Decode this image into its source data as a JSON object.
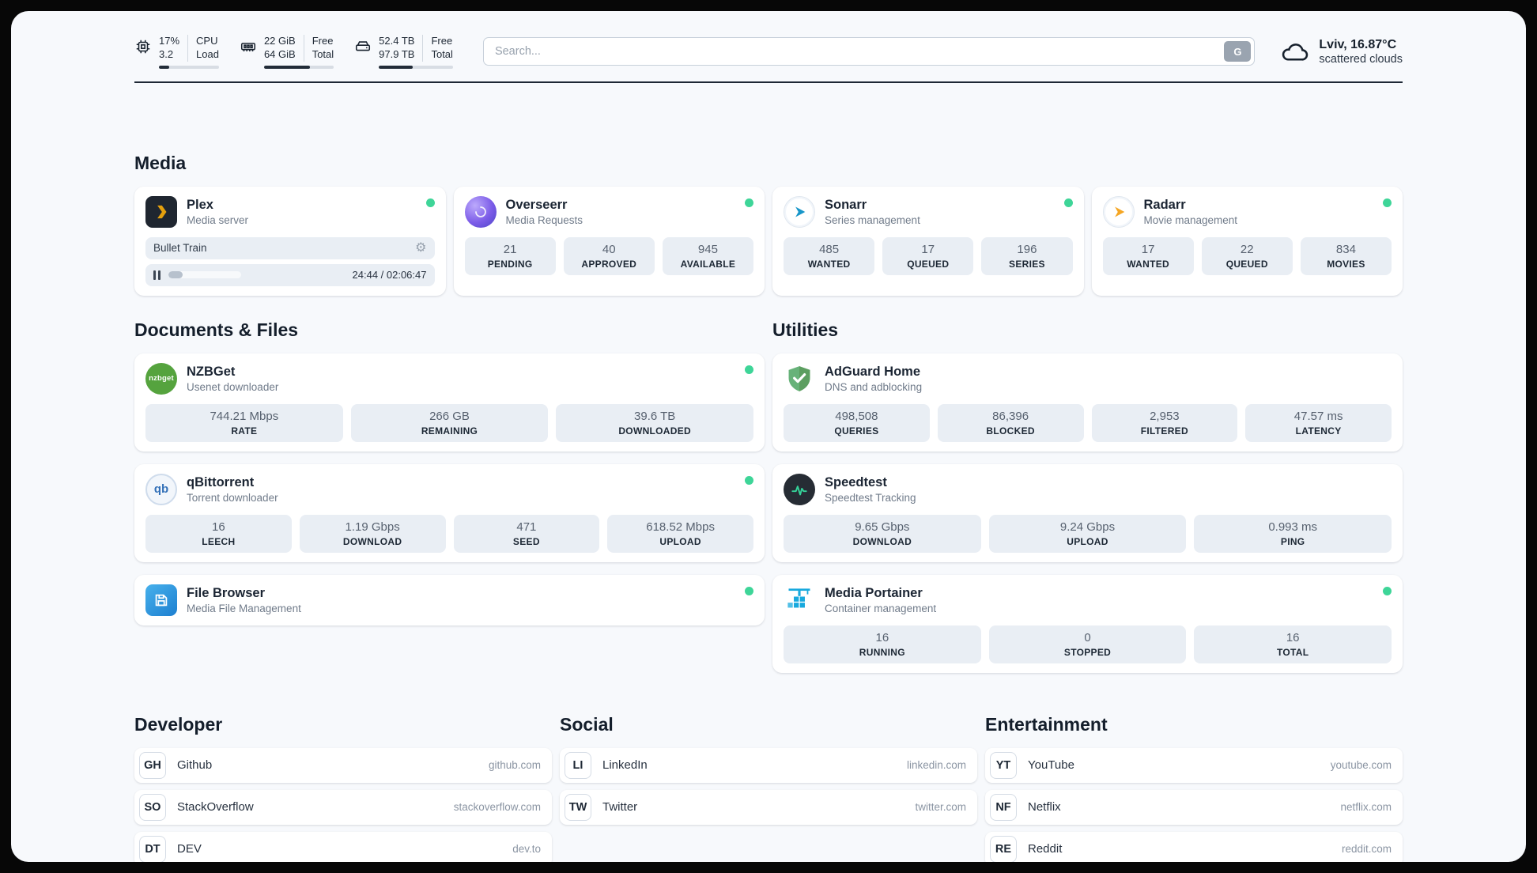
{
  "header": {
    "cpu": {
      "line1": "17%",
      "line2": "3.2",
      "label1": "CPU",
      "label2": "Load",
      "used_percent": 17
    },
    "ram": {
      "line1": "22 GiB",
      "line2": "64 GiB",
      "label1": "Free",
      "label2": "Total",
      "used_percent": 66
    },
    "disk": {
      "line1": "52.4 TB",
      "line2": "97.9 TB",
      "label1": "Free",
      "label2": "Total",
      "used_percent": 46
    },
    "search": {
      "placeholder": "Search...",
      "button_label": "G"
    },
    "weather": {
      "location": "Lviv, 16.87°C",
      "condition": "scattered clouds"
    }
  },
  "sections": {
    "media": {
      "title": "Media",
      "apps": [
        {
          "name": "Plex",
          "subtitle": "Media server",
          "online": true,
          "player": {
            "title": "Bullet Train",
            "time": "24:44 / 02:06:47",
            "progress_percent": 20,
            "state": "paused"
          }
        },
        {
          "name": "Overseerr",
          "subtitle": "Media Requests",
          "online": true,
          "stats": [
            {
              "value": "21",
              "label": "PENDING"
            },
            {
              "value": "40",
              "label": "APPROVED"
            },
            {
              "value": "945",
              "label": "AVAILABLE"
            }
          ]
        },
        {
          "name": "Sonarr",
          "subtitle": "Series management",
          "online": true,
          "stats": [
            {
              "value": "485",
              "label": "WANTED"
            },
            {
              "value": "17",
              "label": "QUEUED"
            },
            {
              "value": "196",
              "label": "SERIES"
            }
          ]
        },
        {
          "name": "Radarr",
          "subtitle": "Movie management",
          "online": true,
          "stats": [
            {
              "value": "17",
              "label": "WANTED"
            },
            {
              "value": "22",
              "label": "QUEUED"
            },
            {
              "value": "834",
              "label": "MOVIES"
            }
          ]
        }
      ]
    },
    "documents": {
      "title": "Documents & Files",
      "apps": [
        {
          "name": "NZBGet",
          "subtitle": "Usenet downloader",
          "online": true,
          "stats": [
            {
              "value": "744.21 Mbps",
              "label": "RATE"
            },
            {
              "value": "266 GB",
              "label": "REMAINING"
            },
            {
              "value": "39.6 TB",
              "label": "DOWNLOADED"
            }
          ]
        },
        {
          "name": "qBittorrent",
          "subtitle": "Torrent downloader",
          "online": true,
          "stats": [
            {
              "value": "16",
              "label": "LEECH"
            },
            {
              "value": "1.19 Gbps",
              "label": "DOWNLOAD"
            },
            {
              "value": "471",
              "label": "SEED"
            },
            {
              "value": "618.52 Mbps",
              "label": "UPLOAD"
            }
          ]
        },
        {
          "name": "File Browser",
          "subtitle": "Media File Management",
          "online": true,
          "stats": []
        }
      ]
    },
    "utilities": {
      "title": "Utilities",
      "apps": [
        {
          "name": "AdGuard Home",
          "subtitle": "DNS and adblocking",
          "stats": [
            {
              "value": "498,508",
              "label": "QUERIES"
            },
            {
              "value": "86,396",
              "label": "BLOCKED"
            },
            {
              "value": "2,953",
              "label": "FILTERED"
            },
            {
              "value": "47.57 ms",
              "label": "LATENCY"
            }
          ]
        },
        {
          "name": "Speedtest",
          "subtitle": "Speedtest Tracking",
          "stats": [
            {
              "value": "9.65 Gbps",
              "label": "DOWNLOAD"
            },
            {
              "value": "9.24 Gbps",
              "label": "UPLOAD"
            },
            {
              "value": "0.993 ms",
              "label": "PING"
            }
          ]
        },
        {
          "name": "Media Portainer",
          "subtitle": "Container management",
          "online": true,
          "stats": [
            {
              "value": "16",
              "label": "RUNNING"
            },
            {
              "value": "0",
              "label": "STOPPED"
            },
            {
              "value": "16",
              "label": "TOTAL"
            }
          ]
        }
      ]
    },
    "bookmarks": [
      {
        "title": "Developer",
        "items": [
          {
            "badge": "GH",
            "name": "Github",
            "url": "github.com"
          },
          {
            "badge": "SO",
            "name": "StackOverflow",
            "url": "stackoverflow.com"
          },
          {
            "badge": "DT",
            "name": "DEV",
            "url": "dev.to"
          }
        ]
      },
      {
        "title": "Social",
        "items": [
          {
            "badge": "LI",
            "name": "LinkedIn",
            "url": "linkedin.com"
          },
          {
            "badge": "TW",
            "name": "Twitter",
            "url": "twitter.com"
          }
        ]
      },
      {
        "title": "Entertainment",
        "items": [
          {
            "badge": "YT",
            "name": "YouTube",
            "url": "youtube.com"
          },
          {
            "badge": "NF",
            "name": "Netflix",
            "url": "netflix.com"
          },
          {
            "badge": "RE",
            "name": "Reddit",
            "url": "reddit.com"
          }
        ]
      }
    ]
  },
  "icons": {
    "cpu": "chip-icon",
    "ram": "memory-icon",
    "disk": "hard-drive-icon",
    "weather": "cloud-icon",
    "settings_glyph": "⚙",
    "pause": "pause-icon",
    "status": "online-dot",
    "nzbget_logo_text": "nzbget",
    "qbittorrent_logo_text": "qb"
  },
  "colors": {
    "status_online": "#3ed598",
    "plex_yellow": "#e5a00d",
    "overseerr_purple": "#7c5ce8",
    "sonarr_blue": "#1796c9",
    "radarr_orange": "#f5a623",
    "nzbget_green": "#55a33e",
    "qbittorrent_blue": "#3471b8",
    "filebrowser_blue": "#2a8fdc",
    "adguard_green": "#67b279",
    "speedtest_green": "#35d49a",
    "portainer_blue": "#18a9de",
    "page_background": "#f7f9fc"
  }
}
